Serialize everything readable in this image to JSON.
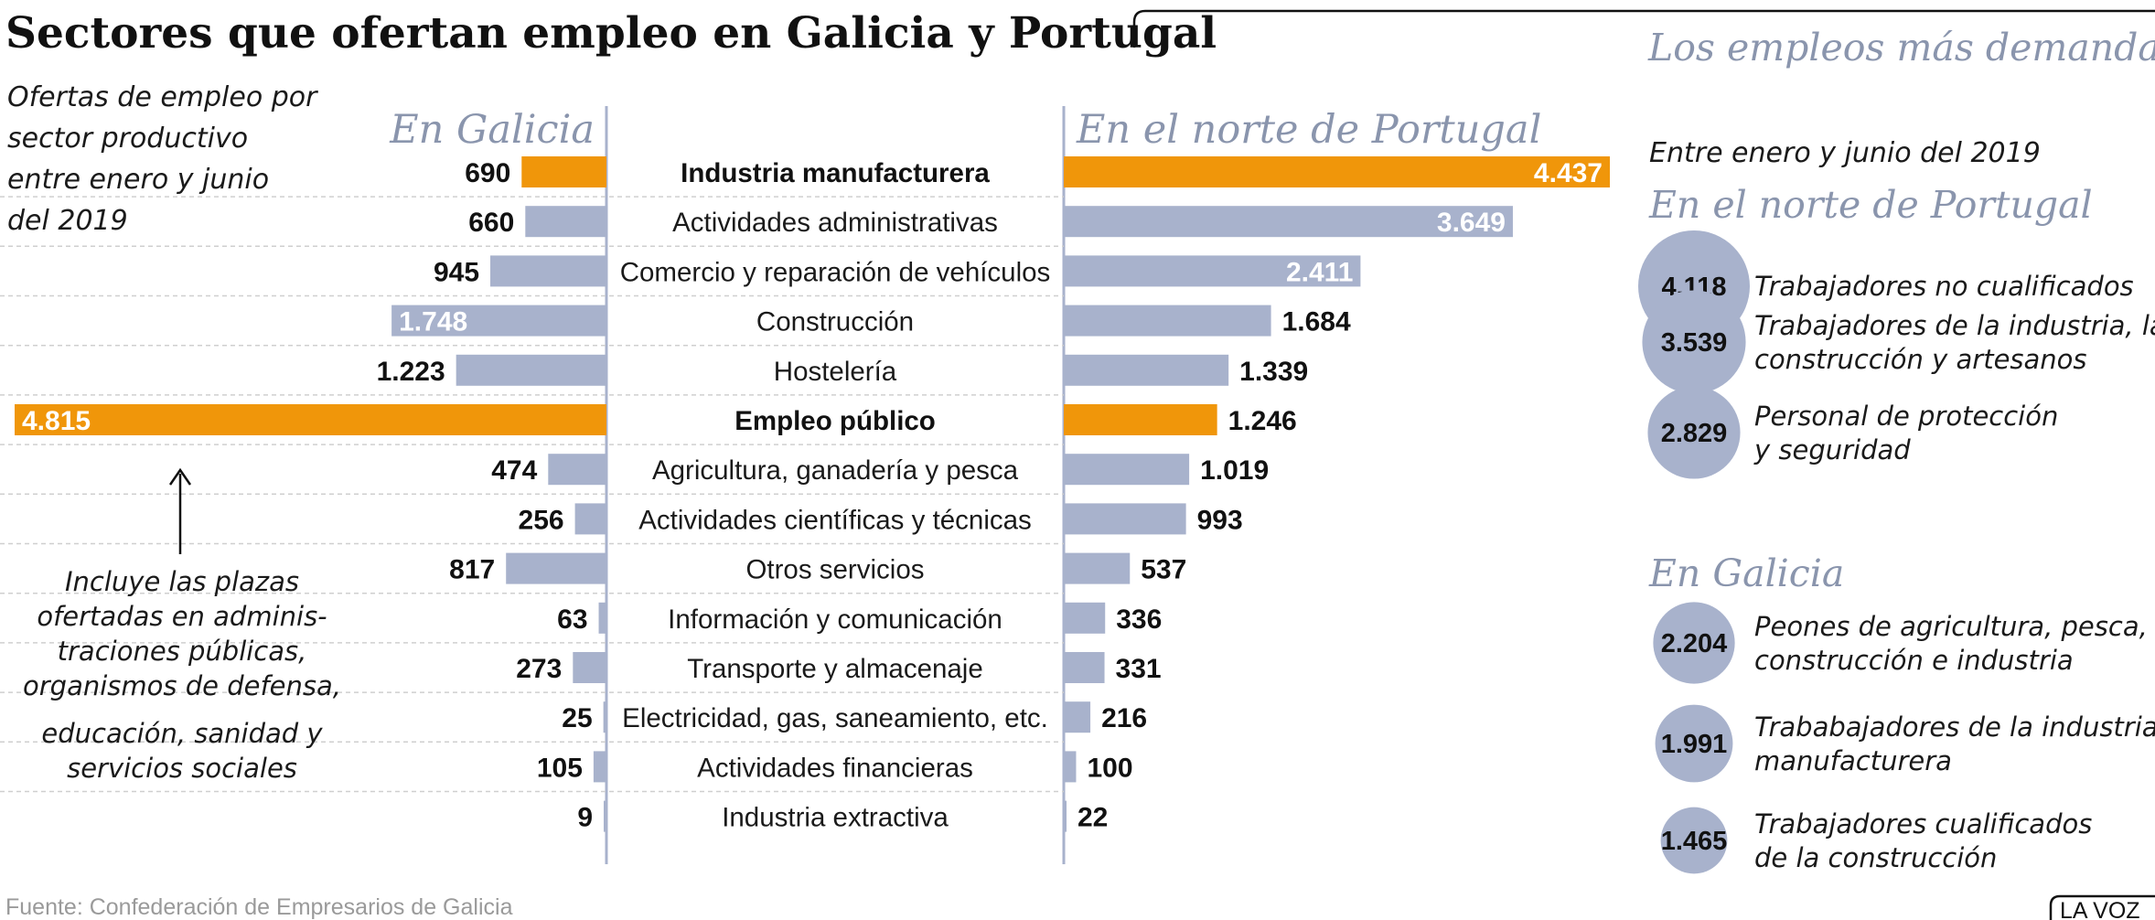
{
  "title": "Sectores que ofertan empleo en Galicia y Portugal",
  "subtitle_lines": [
    "Ofertas de empleo por",
    "sector productivo",
    "entre enero y junio",
    "del 2019"
  ],
  "left_header": "En Galicia",
  "right_header": "En el norte de Portugal",
  "annotation_lines": [
    "Incluye las plazas",
    "ofertadas en adminis-",
    "traciones públicas,",
    "organismos de defensa,",
    "educación, sanidad y",
    "servicios sociales"
  ],
  "source": "Fuente: Confederación de Empresarios de Galicia",
  "brand": "LA VOZ",
  "colors": {
    "bar": "#a8b2cc",
    "highlight": "#f0960a",
    "accent_text": "#8a95ad",
    "circle": "#a8b2cc"
  },
  "chart_data": [
    {
      "type": "bar",
      "orientation": "horizontal",
      "layout": "back-to-back",
      "highlight_categories": [
        "Industria manufacturera",
        "Empleo público"
      ],
      "categories": [
        "Industria manufacturera",
        "Actividades administrativas",
        "Comercio y reparación de vehículos",
        "Construcción",
        "Hostelería",
        "Empleo público",
        "Agricultura, ganadería y pesca",
        "Actividades científicas y técnicas",
        "Otros servicios",
        "Información y comunicación",
        "Transporte y almacenaje",
        "Electricidad, gas, saneamiento, etc.",
        "Actividades financieras",
        "Industria extractiva"
      ],
      "series": [
        {
          "name": "En Galicia",
          "values": [
            690,
            660,
            945,
            1748,
            1223,
            4815,
            474,
            256,
            817,
            63,
            273,
            25,
            105,
            9
          ],
          "labels": [
            "690",
            "660",
            "945",
            "1.748",
            "1.223",
            "4.815",
            "474",
            "256",
            "817",
            "63",
            "273",
            "25",
            "105",
            "9"
          ]
        },
        {
          "name": "En el norte de Portugal",
          "values": [
            4437,
            3649,
            2411,
            1684,
            1339,
            1246,
            1019,
            993,
            537,
            336,
            331,
            216,
            100,
            22
          ],
          "labels": [
            "4.437",
            "3.649",
            "2.411",
            "1.684",
            "1.339",
            "1.246",
            "1.019",
            "993",
            "537",
            "336",
            "331",
            "216",
            "100",
            "22"
          ]
        }
      ]
    },
    {
      "type": "bubble",
      "title": "Los empleos más demandados",
      "subtitle": "Entre enero y junio del 2019",
      "groups": [
        {
          "name": "En el norte de Portugal",
          "items": [
            {
              "value": 4118,
              "label": "4.118",
              "lines": [
                "Trabajadores no cualificados"
              ]
            },
            {
              "value": 3539,
              "label": "3.539",
              "lines": [
                "Trabajadores de la industria, la",
                "construcción y artesanos"
              ]
            },
            {
              "value": 2829,
              "label": "2.829",
              "lines": [
                "Personal de protección",
                "y seguridad"
              ]
            }
          ]
        },
        {
          "name": "En Galicia",
          "items": [
            {
              "value": 2204,
              "label": "2.204",
              "lines": [
                "Peones de agricultura, pesca,",
                "construcción e industria"
              ]
            },
            {
              "value": 1991,
              "label": "1.991",
              "lines": [
                "Trababajadores de la industria",
                "manufacturera"
              ]
            },
            {
              "value": 1465,
              "label": "1.465",
              "lines": [
                "Trabajadores cualificados",
                "de la construcción"
              ]
            }
          ]
        }
      ]
    }
  ]
}
